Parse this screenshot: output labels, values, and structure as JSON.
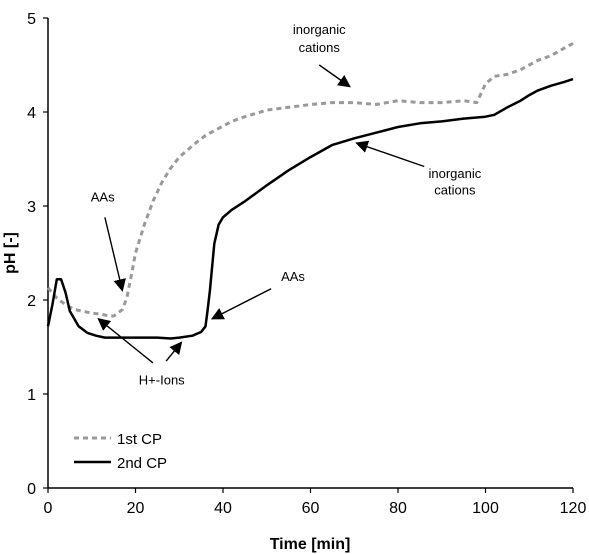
{
  "chart_data": {
    "type": "line",
    "xlabel": "Time [min]",
    "ylabel": "pH [-]",
    "xlim": [
      0,
      120
    ],
    "ylim": [
      0,
      5
    ],
    "xticks": [
      0,
      20,
      40,
      60,
      80,
      100,
      120
    ],
    "yticks": [
      0,
      1,
      2,
      3,
      4,
      5
    ],
    "grid": false,
    "legend": "bottom-left",
    "series": [
      {
        "name": "1st CP",
        "color": "#999999",
        "style": "dashed",
        "x": [
          0,
          2,
          4,
          6,
          8,
          10,
          12,
          14,
          15,
          16,
          17,
          18,
          19,
          20,
          22,
          24,
          26,
          28,
          30,
          32,
          34,
          36,
          38,
          40,
          42,
          45,
          50,
          55,
          60,
          65,
          70,
          75,
          80,
          85,
          90,
          95,
          98,
          100,
          102,
          105,
          108,
          110,
          112,
          115,
          118,
          120
        ],
        "y": [
          2.13,
          2.02,
          1.95,
          1.9,
          1.88,
          1.86,
          1.85,
          1.83,
          1.83,
          1.86,
          1.9,
          2.02,
          2.25,
          2.5,
          2.8,
          3.05,
          3.25,
          3.4,
          3.52,
          3.6,
          3.68,
          3.75,
          3.8,
          3.85,
          3.9,
          3.95,
          4.02,
          4.05,
          4.08,
          4.1,
          4.1,
          4.08,
          4.12,
          4.1,
          4.1,
          4.12,
          4.1,
          4.3,
          4.38,
          4.4,
          4.45,
          4.5,
          4.55,
          4.6,
          4.68,
          4.73
        ]
      },
      {
        "name": "2nd CP",
        "color": "#000000",
        "style": "solid",
        "x": [
          0,
          1,
          2,
          3,
          4,
          5,
          7,
          9,
          11,
          13,
          16,
          20,
          25,
          28,
          30,
          33,
          35,
          36,
          36.5,
          37,
          37.5,
          38,
          39,
          40,
          42,
          45,
          50,
          55,
          60,
          65,
          70,
          75,
          80,
          85,
          90,
          95,
          100,
          102,
          105,
          108,
          110,
          112,
          115,
          118,
          120
        ],
        "y": [
          1.72,
          1.95,
          2.22,
          2.22,
          2.08,
          1.88,
          1.72,
          1.65,
          1.62,
          1.6,
          1.6,
          1.6,
          1.6,
          1.59,
          1.6,
          1.62,
          1.66,
          1.72,
          1.9,
          2.1,
          2.35,
          2.6,
          2.8,
          2.88,
          2.96,
          3.05,
          3.22,
          3.38,
          3.52,
          3.65,
          3.72,
          3.78,
          3.84,
          3.88,
          3.9,
          3.93,
          3.95,
          3.97,
          4.05,
          4.12,
          4.18,
          4.23,
          4.28,
          4.32,
          4.35
        ]
      }
    ],
    "annotations": [
      {
        "id": "annot-inorganic-top-1",
        "text": "inorganic",
        "x": 62,
        "y": 4.83
      },
      {
        "id": "annot-inorganic-top-2",
        "text": "cations",
        "x": 62,
        "y": 4.64
      },
      {
        "id": "annot-aas-top",
        "text": "AAs",
        "x": 12.5,
        "y": 3.05
      },
      {
        "id": "annot-aas-bottom",
        "text": "AAs",
        "x": 56,
        "y": 2.2
      },
      {
        "id": "annot-h-ions",
        "text": "H+-Ions",
        "x": 26,
        "y": 1.1
      },
      {
        "id": "annot-inorganic-right-1",
        "text": "inorganic",
        "x": 93,
        "y": 3.3
      },
      {
        "id": "annot-inorganic-right-2",
        "text": "cations",
        "x": 93,
        "y": 3.12
      }
    ],
    "arrows": [
      {
        "id": "arrow-inorganic-top",
        "from": [
          62,
          4.5
        ],
        "to": [
          69,
          4.27
        ]
      },
      {
        "id": "arrow-aas-top",
        "from": [
          13,
          2.88
        ],
        "to": [
          17,
          2.1
        ]
      },
      {
        "id": "arrow-aas-bottom",
        "from": [
          51,
          2.12
        ],
        "to": [
          37.5,
          1.8
        ]
      },
      {
        "id": "arrow-h-ions-left",
        "from": [
          24,
          1.33
        ],
        "to": [
          11.5,
          1.8
        ]
      },
      {
        "id": "arrow-h-ions-right",
        "from": [
          27,
          1.35
        ],
        "to": [
          30.5,
          1.55
        ]
      },
      {
        "id": "arrow-inorganic-right",
        "from": [
          86,
          3.42
        ],
        "to": [
          70.5,
          3.67
        ]
      }
    ]
  }
}
